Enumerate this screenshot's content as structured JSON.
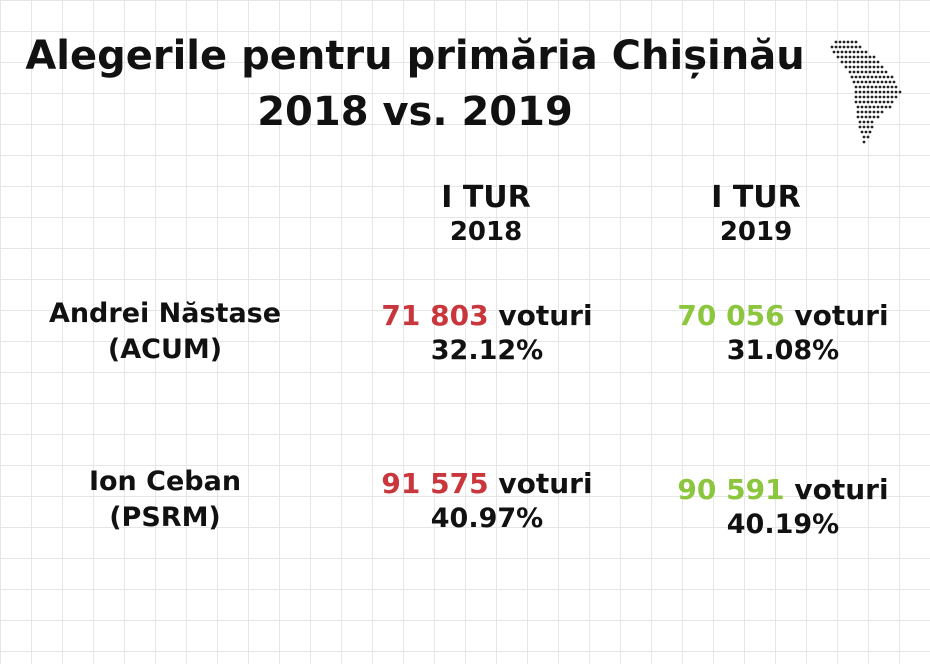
{
  "title": {
    "line1": "Alegerile pentru primăria Chișinău",
    "line2": "2018 vs. 2019"
  },
  "map_icon": "moldova-dotted-map-icon",
  "columns": [
    {
      "round": "I TUR",
      "year": "2018"
    },
    {
      "round": "I TUR",
      "year": "2019"
    }
  ],
  "candidates": [
    {
      "name": "Andrei Năstase",
      "party": "(ACUM)",
      "results": [
        {
          "votes": "71 803",
          "unit": "voturi",
          "percent": "32.12%"
        },
        {
          "votes": "70 056",
          "unit": "voturi",
          "percent": "31.08%"
        }
      ]
    },
    {
      "name": "Ion Ceban",
      "party": "(PSRM)",
      "results": [
        {
          "votes": "91 575",
          "unit": "voturi",
          "percent": "40.97%"
        },
        {
          "votes": "90 591",
          "unit": "voturi",
          "percent": "40.19%"
        }
      ]
    }
  ],
  "colors": {
    "votes_2018": "#c9363b",
    "votes_2019": "#8cc63f",
    "text": "#111111",
    "grid": "#e6e6e6"
  }
}
